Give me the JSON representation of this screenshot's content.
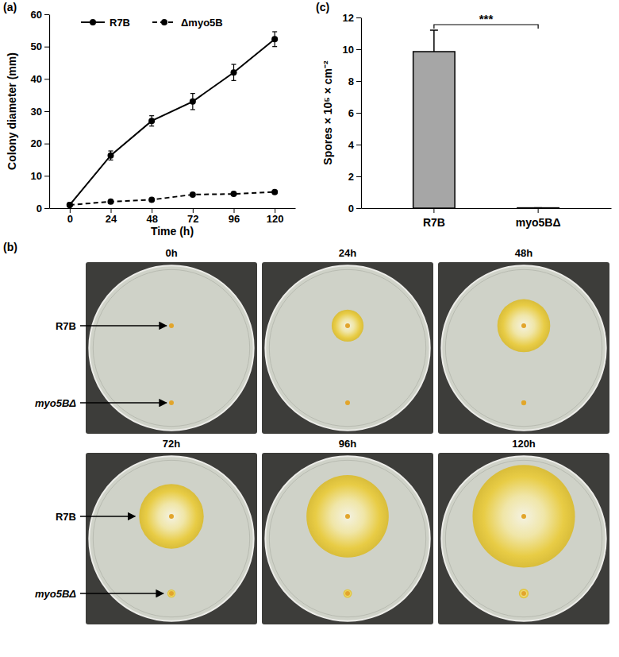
{
  "panel_labels": {
    "a": "(a)",
    "b": "(b)",
    "c": "(c)"
  },
  "chart_data": [
    {
      "type": "line",
      "x_label": "Time (h)",
      "y_label": "Colony diameter (mm)",
      "x": [
        0,
        24,
        48,
        72,
        96,
        120
      ],
      "xlim": [
        -12,
        132
      ],
      "xticks": [
        0,
        24,
        48,
        72,
        96,
        120
      ],
      "ylim": [
        0,
        60
      ],
      "yticks": [
        0,
        10,
        20,
        30,
        40,
        50,
        60
      ],
      "legend": "top",
      "grid": false,
      "series": [
        {
          "name": "R7B",
          "color": "#000000",
          "marker": "circle",
          "line_style": "solid",
          "values": [
            1,
            16.3,
            27,
            33,
            42,
            52.3
          ],
          "errors": [
            0.2,
            1.4,
            1.6,
            2.5,
            2.5,
            2.3
          ]
        },
        {
          "name": "Δmyo5B",
          "color": "#000000",
          "marker": "circle",
          "line_style": "dashed",
          "values": [
            1,
            2,
            2.6,
            4.2,
            4.4,
            5
          ],
          "errors": [
            0.2,
            0.3,
            0.3,
            0.4,
            0.4,
            0.5
          ]
        }
      ]
    },
    {
      "type": "bar",
      "y_label": "Spores × 10⁵ × cm⁻²",
      "categories": [
        "R7B",
        "myo5BΔ"
      ],
      "values": [
        9.85,
        0.02
      ],
      "errors": [
        1.35,
        0
      ],
      "color": "#a6a6a6",
      "ylim": [
        0,
        12
      ],
      "yticks": [
        0,
        2,
        4,
        6,
        8,
        10,
        12
      ],
      "grid": false,
      "annotations": [
        "***"
      ]
    }
  ],
  "plates": [
    {
      "title": "0h",
      "labels": [
        "R7B",
        "myo5BΔ"
      ]
    },
    {
      "title": "24h"
    },
    {
      "title": "48h"
    },
    {
      "title": "72h",
      "labels": [
        "R7B",
        "myo5BΔ"
      ]
    },
    {
      "title": "96h"
    },
    {
      "title": "120h"
    }
  ]
}
